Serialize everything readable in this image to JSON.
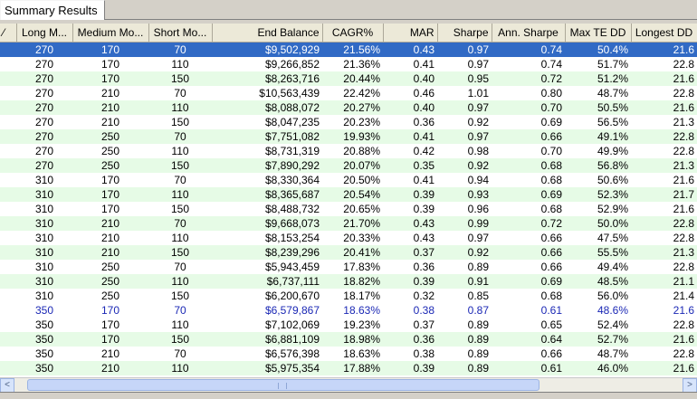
{
  "tab": {
    "label": "Summary Results"
  },
  "columns": [
    "",
    "Long M...",
    "Medium Mo...",
    "Short Mo...",
    "End Balance",
    "CAGR%",
    "MAR",
    "Sharpe",
    "Ann. Sharpe",
    "Max TE DD",
    "Longest DD"
  ],
  "rows": [
    [
      "270",
      "170",
      "70",
      "$9,502,929",
      "21.56%",
      "0.43",
      "0.97",
      "0.74",
      "50.4%",
      "21.6"
    ],
    [
      "270",
      "170",
      "110",
      "$9,266,852",
      "21.36%",
      "0.41",
      "0.97",
      "0.74",
      "51.7%",
      "22.8"
    ],
    [
      "270",
      "170",
      "150",
      "$8,263,716",
      "20.44%",
      "0.40",
      "0.95",
      "0.72",
      "51.2%",
      "21.6"
    ],
    [
      "270",
      "210",
      "70",
      "$10,563,439",
      "22.42%",
      "0.46",
      "1.01",
      "0.80",
      "48.7%",
      "22.8"
    ],
    [
      "270",
      "210",
      "110",
      "$8,088,072",
      "20.27%",
      "0.40",
      "0.97",
      "0.70",
      "50.5%",
      "21.6"
    ],
    [
      "270",
      "210",
      "150",
      "$8,047,235",
      "20.23%",
      "0.36",
      "0.92",
      "0.69",
      "56.5%",
      "21.3"
    ],
    [
      "270",
      "250",
      "70",
      "$7,751,082",
      "19.93%",
      "0.41",
      "0.97",
      "0.66",
      "49.1%",
      "22.8"
    ],
    [
      "270",
      "250",
      "110",
      "$8,731,319",
      "20.88%",
      "0.42",
      "0.98",
      "0.70",
      "49.9%",
      "22.8"
    ],
    [
      "270",
      "250",
      "150",
      "$7,890,292",
      "20.07%",
      "0.35",
      "0.92",
      "0.68",
      "56.8%",
      "21.3"
    ],
    [
      "310",
      "170",
      "70",
      "$8,330,364",
      "20.50%",
      "0.41",
      "0.94",
      "0.68",
      "50.6%",
      "21.6"
    ],
    [
      "310",
      "170",
      "110",
      "$8,365,687",
      "20.54%",
      "0.39",
      "0.93",
      "0.69",
      "52.3%",
      "21.7"
    ],
    [
      "310",
      "170",
      "150",
      "$8,488,732",
      "20.65%",
      "0.39",
      "0.96",
      "0.68",
      "52.9%",
      "21.6"
    ],
    [
      "310",
      "210",
      "70",
      "$9,668,073",
      "21.70%",
      "0.43",
      "0.99",
      "0.72",
      "50.0%",
      "22.8"
    ],
    [
      "310",
      "210",
      "110",
      "$8,153,254",
      "20.33%",
      "0.43",
      "0.97",
      "0.66",
      "47.5%",
      "22.8"
    ],
    [
      "310",
      "210",
      "150",
      "$8,239,296",
      "20.41%",
      "0.37",
      "0.92",
      "0.66",
      "55.5%",
      "21.3"
    ],
    [
      "310",
      "250",
      "70",
      "$5,943,459",
      "17.83%",
      "0.36",
      "0.89",
      "0.66",
      "49.4%",
      "22.8"
    ],
    [
      "310",
      "250",
      "110",
      "$6,737,111",
      "18.82%",
      "0.39",
      "0.91",
      "0.69",
      "48.5%",
      "21.1"
    ],
    [
      "310",
      "250",
      "150",
      "$6,200,670",
      "18.17%",
      "0.32",
      "0.85",
      "0.68",
      "56.0%",
      "21.4"
    ],
    [
      "350",
      "170",
      "70",
      "$6,579,867",
      "18.63%",
      "0.38",
      "0.87",
      "0.61",
      "48.6%",
      "21.6"
    ],
    [
      "350",
      "170",
      "110",
      "$7,102,069",
      "19.23%",
      "0.37",
      "0.89",
      "0.65",
      "52.4%",
      "22.8"
    ],
    [
      "350",
      "170",
      "150",
      "$6,881,109",
      "18.98%",
      "0.36",
      "0.89",
      "0.64",
      "52.7%",
      "21.6"
    ],
    [
      "350",
      "210",
      "70",
      "$6,576,398",
      "18.63%",
      "0.38",
      "0.89",
      "0.66",
      "48.7%",
      "22.8"
    ],
    [
      "350",
      "210",
      "110",
      "$5,975,354",
      "17.88%",
      "0.39",
      "0.89",
      "0.61",
      "46.0%",
      "21.6"
    ]
  ],
  "row_states": [
    "selected",
    "white",
    "green",
    "white",
    "green",
    "white",
    "green",
    "white",
    "green",
    "white",
    "green",
    "white",
    "green",
    "white",
    "green",
    "white",
    "green",
    "white",
    "focused",
    "white",
    "green",
    "white",
    "green"
  ],
  "scroll": {
    "left_arrow": "<",
    "right_arrow": ">"
  },
  "colors": {
    "selected": "#316ac5",
    "green_row": "#e6fbe6",
    "focused_text": "#1b28b5"
  }
}
